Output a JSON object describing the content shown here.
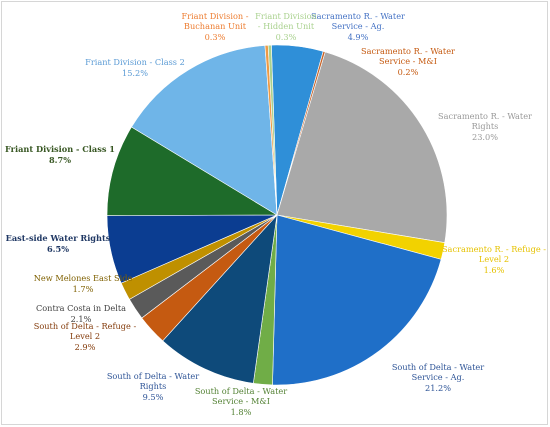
{
  "chart_data": {
    "type": "pie",
    "title": "",
    "legend": "none",
    "slices": [
      {
        "label": "Sacramento R. - Water Service - Ag.",
        "value": 4.9,
        "value_label": "4.9%",
        "color": "#2f8fd8",
        "text_color": "#4472c4"
      },
      {
        "label": "Sacramento R. - Water Service - M&I",
        "value": 0.2,
        "value_label": "0.2%",
        "color": "#c9652a",
        "text_color": "#c55a11"
      },
      {
        "label": "Sacramento R. - Water Rights",
        "value": 23.0,
        "value_label": "23.0%",
        "color": "#a9a9a9",
        "text_color": "#999999"
      },
      {
        "label": "Sacramento R. - Refuge - Level 2",
        "value": 1.6,
        "value_label": "1.6%",
        "color": "#f2d200",
        "text_color": "#e6c200"
      },
      {
        "label": "South of Delta - Water Service - Ag.",
        "value": 21.2,
        "value_label": "21.2%",
        "color": "#1f6fc8",
        "text_color": "#2f5597"
      },
      {
        "label": "South of Delta - Water Service - M&I",
        "value": 1.8,
        "value_label": "1.8%",
        "color": "#70ad47",
        "text_color": "#548235"
      },
      {
        "label": "South of Delta - Water Rights",
        "value": 9.5,
        "value_label": "9.5%",
        "color": "#0e4a7a",
        "text_color": "#2f5597"
      },
      {
        "label": "South of Delta - Refuge - Level 2",
        "value": 2.9,
        "value_label": "2.9%",
        "color": "#c55a11",
        "text_color": "#843c0c"
      },
      {
        "label": "Contra Costa in Delta",
        "value": 2.1,
        "value_label": "2.1%",
        "color": "#5a5a5a",
        "text_color": "#404040"
      },
      {
        "label": "New Melones East Side",
        "value": 1.7,
        "value_label": "1.7%",
        "color": "#bf9000",
        "text_color": "#7f6000"
      },
      {
        "label": "East-side Water Rights",
        "value": 6.5,
        "value_label": "6.5%",
        "color": "#0b3d91",
        "text_color": "#203864"
      },
      {
        "label": "Friant Division - Class 1",
        "value": 8.7,
        "value_label": "8.7%",
        "color": "#1e6b2a",
        "text_color": "#385723"
      },
      {
        "label": "Friant Division - Class 2",
        "value": 15.2,
        "value_label": "15.2%",
        "color": "#6fb5e8",
        "text_color": "#5b9bd5"
      },
      {
        "label": "Friant Division - Buchanan Unit",
        "value": 0.3,
        "value_label": "0.3%",
        "color": "#ed9a45",
        "text_color": "#ed7d31"
      },
      {
        "label": "Friant Division - Hidden Unit",
        "value": 0.3,
        "value_label": "0.3%",
        "color": "#a9d18e",
        "text_color": "#a9d18e"
      }
    ]
  }
}
